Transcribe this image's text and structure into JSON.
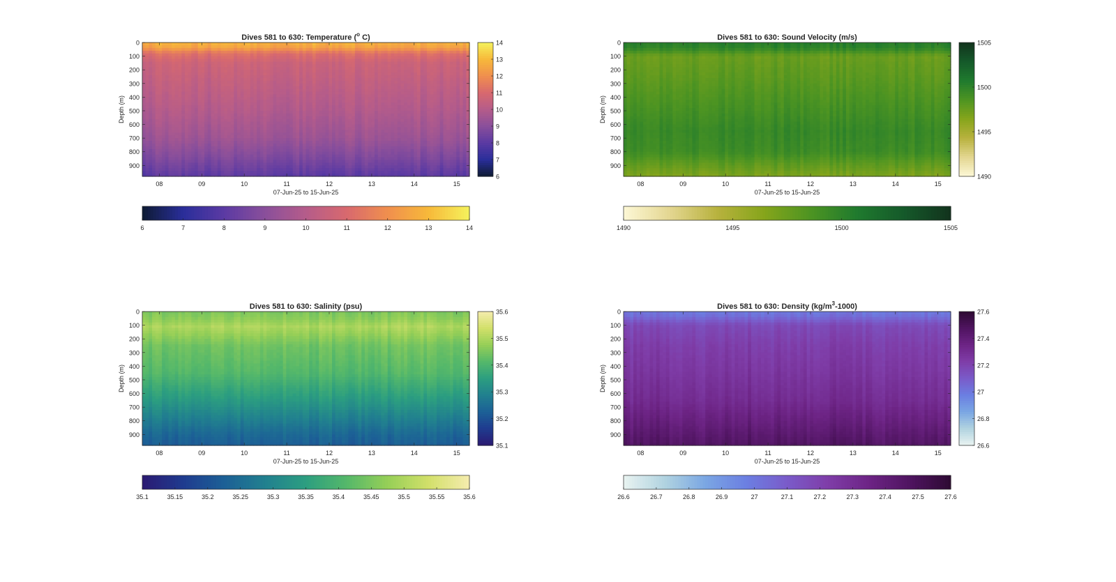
{
  "figure": {
    "background": "#ffffff"
  },
  "chart_data": [
    {
      "type": "heatmap",
      "variable": "temperature",
      "title": "Dives 581 to 630: Temperature (",
      "title_sup": "o",
      "title_tail": " C)",
      "xlabel": "07-Jun-25 to 15-Jun-25",
      "ylabel": "Depth (m)",
      "x_ticks": [
        "08",
        "09",
        "10",
        "11",
        "12",
        "13",
        "14",
        "15"
      ],
      "xlim_days": [
        7.6,
        15.3
      ],
      "y_ticks": [
        0,
        100,
        200,
        300,
        400,
        500,
        600,
        700,
        800,
        900
      ],
      "ylim": [
        0,
        980
      ],
      "depth_profile": [
        {
          "depth": 0,
          "value": 12.8
        },
        {
          "depth": 40,
          "value": 12.4
        },
        {
          "depth": 80,
          "value": 11.2
        },
        {
          "depth": 150,
          "value": 10.6
        },
        {
          "depth": 300,
          "value": 10.3
        },
        {
          "depth": 500,
          "value": 9.9
        },
        {
          "depth": 700,
          "value": 9.4
        },
        {
          "depth": 850,
          "value": 8.7
        },
        {
          "depth": 980,
          "value": 8.0
        }
      ],
      "colorbar": {
        "range": [
          6,
          14
        ],
        "ticks": [
          "6",
          "7",
          "8",
          "9",
          "10",
          "11",
          "12",
          "13",
          "14"
        ],
        "horizontal_ticks": [
          "6",
          "7",
          "8",
          "9",
          "10",
          "11",
          "12",
          "13",
          "14"
        ],
        "stops": [
          "#0d1b33",
          "#2a2e9a",
          "#5b3aa3",
          "#8a4f9b",
          "#b55c8a",
          "#d8696e",
          "#f08f4e",
          "#f7b93a",
          "#f5f25c"
        ]
      },
      "reverse_depth_gradient": false
    },
    {
      "type": "heatmap",
      "variable": "sound_velocity",
      "title": "Dives 581 to 630: Sound Velocity (m/s)",
      "title_sup": "",
      "title_tail": "",
      "xlabel": "07-Jun-25 to 15-Jun-25",
      "ylabel": "Depth (m)",
      "x_ticks": [
        "08",
        "09",
        "10",
        "11",
        "12",
        "13",
        "14",
        "15"
      ],
      "xlim_days": [
        7.6,
        15.3
      ],
      "y_ticks": [
        0,
        100,
        200,
        300,
        400,
        500,
        600,
        700,
        800,
        900
      ],
      "ylim": [
        0,
        980
      ],
      "depth_profile": [
        {
          "depth": 0,
          "value": 1500.3
        },
        {
          "depth": 40,
          "value": 1500.0
        },
        {
          "depth": 100,
          "value": 1497.5
        },
        {
          "depth": 250,
          "value": 1498.0
        },
        {
          "depth": 450,
          "value": 1498.8
        },
        {
          "depth": 650,
          "value": 1499.6
        },
        {
          "depth": 800,
          "value": 1499.3
        },
        {
          "depth": 900,
          "value": 1497.8
        },
        {
          "depth": 980,
          "value": 1496.8
        }
      ],
      "colorbar": {
        "range": [
          1490,
          1505
        ],
        "ticks": [
          "1490",
          "1495",
          "1500",
          "1505"
        ],
        "horizontal_ticks": [
          "1490",
          "1495",
          "1500",
          "1505"
        ],
        "stops": [
          "#fdf8d6",
          "#e3d690",
          "#b8b23e",
          "#86a51b",
          "#4d9422",
          "#1f7a2e",
          "#15592a",
          "#12331d"
        ]
      },
      "reverse_depth_gradient": false
    },
    {
      "type": "heatmap",
      "variable": "salinity",
      "title": "Dives 581 to 630: Salinity (psu)",
      "title_sup": "",
      "title_tail": "",
      "xlabel": "07-Jun-25 to 15-Jun-25",
      "ylabel": "Depth (m)",
      "x_ticks": [
        "08",
        "09",
        "10",
        "11",
        "12",
        "13",
        "14",
        "15"
      ],
      "xlim_days": [
        7.6,
        15.3
      ],
      "y_ticks": [
        0,
        100,
        200,
        300,
        400,
        500,
        600,
        700,
        800,
        900
      ],
      "ylim": [
        0,
        980
      ],
      "depth_profile": [
        {
          "depth": 0,
          "value": 35.45
        },
        {
          "depth": 60,
          "value": 35.47
        },
        {
          "depth": 110,
          "value": 35.5
        },
        {
          "depth": 250,
          "value": 35.44
        },
        {
          "depth": 450,
          "value": 35.41
        },
        {
          "depth": 650,
          "value": 35.34
        },
        {
          "depth": 800,
          "value": 35.28
        },
        {
          "depth": 900,
          "value": 35.24
        },
        {
          "depth": 980,
          "value": 35.22
        }
      ],
      "colorbar": {
        "range": [
          35.1,
          35.6
        ],
        "ticks": [
          "35.1",
          "35.2",
          "35.3",
          "35.4",
          "35.5",
          "35.6"
        ],
        "horizontal_ticks": [
          "35.1",
          "35.15",
          "35.2",
          "35.25",
          "35.3",
          "35.35",
          "35.4",
          "35.45",
          "35.5",
          "35.55",
          "35.6"
        ],
        "stops": [
          "#2b1a72",
          "#1f3b8f",
          "#1c6096",
          "#21808f",
          "#2c9e80",
          "#55b86a",
          "#96cf57",
          "#d2e06a",
          "#f5ecae"
        ]
      },
      "reverse_depth_gradient": false
    },
    {
      "type": "heatmap",
      "variable": "density",
      "title": "Dives 581 to 630: Density (kg/m",
      "title_sup": "3",
      "title_tail": "-1000)",
      "xlabel": "07-Jun-25 to 15-Jun-25",
      "ylabel": "Depth (m)",
      "x_ticks": [
        "08",
        "09",
        "10",
        "11",
        "12",
        "13",
        "14",
        "15"
      ],
      "xlim_days": [
        7.6,
        15.3
      ],
      "y_ticks": [
        0,
        100,
        200,
        300,
        400,
        500,
        600,
        700,
        800,
        900
      ],
      "ylim": [
        0,
        980
      ],
      "depth_profile": [
        {
          "depth": 0,
          "value": 27.0
        },
        {
          "depth": 40,
          "value": 27.04
        },
        {
          "depth": 100,
          "value": 27.17
        },
        {
          "depth": 250,
          "value": 27.22
        },
        {
          "depth": 450,
          "value": 27.26
        },
        {
          "depth": 650,
          "value": 27.31
        },
        {
          "depth": 800,
          "value": 27.38
        },
        {
          "depth": 900,
          "value": 27.43
        },
        {
          "depth": 980,
          "value": 27.47
        }
      ],
      "colorbar": {
        "range": [
          26.6,
          27.6
        ],
        "ticks": [
          "26.6",
          "26.8",
          "27",
          "27.2",
          "27.4",
          "27.6"
        ],
        "horizontal_ticks": [
          "26.6",
          "26.7",
          "26.8",
          "26.9",
          "27",
          "27.1",
          "27.2",
          "27.3",
          "27.4",
          "27.5",
          "27.6"
        ],
        "stops": [
          "#e9f3f1",
          "#b1d3e0",
          "#7aa6e3",
          "#6b7fe2",
          "#7a5bc9",
          "#7f3da8",
          "#6d2485",
          "#4f1460",
          "#2e0a33"
        ]
      },
      "reverse_depth_gradient": false
    }
  ]
}
